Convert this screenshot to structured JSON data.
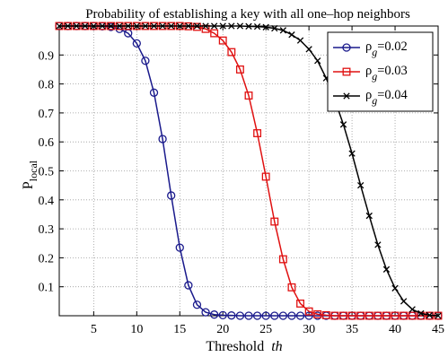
{
  "chart_data": {
    "type": "line",
    "title": "Probability of establishing a key with all one–hop neighbors",
    "xlabel": {
      "text": "Threshold",
      "italic_part": "th"
    },
    "ylabel": {
      "text": "P",
      "subscript": "local"
    },
    "xlim": [
      1,
      45
    ],
    "ylim": [
      0,
      1
    ],
    "x_ticks": [
      5,
      10,
      15,
      20,
      25,
      30,
      35,
      40,
      45
    ],
    "y_ticks": [
      0.1,
      0.2,
      0.3,
      0.4,
      0.5,
      0.6,
      0.7,
      0.8,
      0.9
    ],
    "y_tick_labels": [
      "0.1",
      "0.2",
      "0.3",
      "0.4",
      "0.5",
      "0.6",
      "0.7",
      "0.8",
      "0.9"
    ],
    "grid": true,
    "legend_position": "top-right",
    "x": [
      1,
      2,
      3,
      4,
      5,
      6,
      7,
      8,
      9,
      10,
      11,
      12,
      13,
      14,
      15,
      16,
      17,
      18,
      19,
      20,
      21,
      22,
      23,
      24,
      25,
      26,
      27,
      28,
      29,
      30,
      31,
      32,
      33,
      34,
      35,
      36,
      37,
      38,
      39,
      40,
      41,
      42,
      43,
      44,
      45
    ],
    "series": [
      {
        "legend_prefix": "ρ",
        "legend_sub": "g",
        "legend_value": "=0.02",
        "color": "#1a1a8c",
        "marker": "circle",
        "values": [
          1.0,
          1.0,
          1.0,
          1.0,
          1.0,
          0.999,
          0.997,
          0.99,
          0.975,
          0.94,
          0.88,
          0.77,
          0.61,
          0.415,
          0.235,
          0.105,
          0.038,
          0.012,
          0.004,
          0.002,
          0.001,
          0.0,
          0.0,
          0.0,
          0.0,
          0.0,
          0.0,
          0.0,
          0.0,
          0.0,
          0.0,
          0.0,
          0.0,
          0.0,
          0.0,
          0.0,
          0.0,
          0.0,
          0.0,
          0.0,
          0.0,
          0.0,
          0.0,
          0.0,
          0.0
        ]
      },
      {
        "legend_prefix": "ρ",
        "legend_sub": "g",
        "legend_value": "=0.03",
        "color": "#e01010",
        "marker": "square",
        "values": [
          1.0,
          1.0,
          1.0,
          1.0,
          1.0,
          1.0,
          1.0,
          1.0,
          1.0,
          1.0,
          1.0,
          1.0,
          1.0,
          1.0,
          1.0,
          0.999,
          0.997,
          0.99,
          0.975,
          0.95,
          0.91,
          0.85,
          0.76,
          0.63,
          0.48,
          0.325,
          0.195,
          0.098,
          0.042,
          0.015,
          0.005,
          0.002,
          0.0,
          0.0,
          0.0,
          0.0,
          0.0,
          0.0,
          0.0,
          0.0,
          0.0,
          0.0,
          0.0,
          0.0,
          0.0
        ]
      },
      {
        "legend_prefix": "ρ",
        "legend_sub": "g",
        "legend_value": "=0.04",
        "color": "#000000",
        "marker": "x",
        "values": [
          1.0,
          1.0,
          1.0,
          1.0,
          1.0,
          1.0,
          1.0,
          1.0,
          1.0,
          1.0,
          1.0,
          1.0,
          1.0,
          1.0,
          1.0,
          1.0,
          1.0,
          1.0,
          1.0,
          1.0,
          1.0,
          1.0,
          0.999,
          0.998,
          0.996,
          0.992,
          0.985,
          0.97,
          0.95,
          0.92,
          0.88,
          0.82,
          0.745,
          0.66,
          0.56,
          0.45,
          0.345,
          0.245,
          0.16,
          0.095,
          0.05,
          0.022,
          0.008,
          0.002,
          0.0
        ]
      }
    ]
  }
}
